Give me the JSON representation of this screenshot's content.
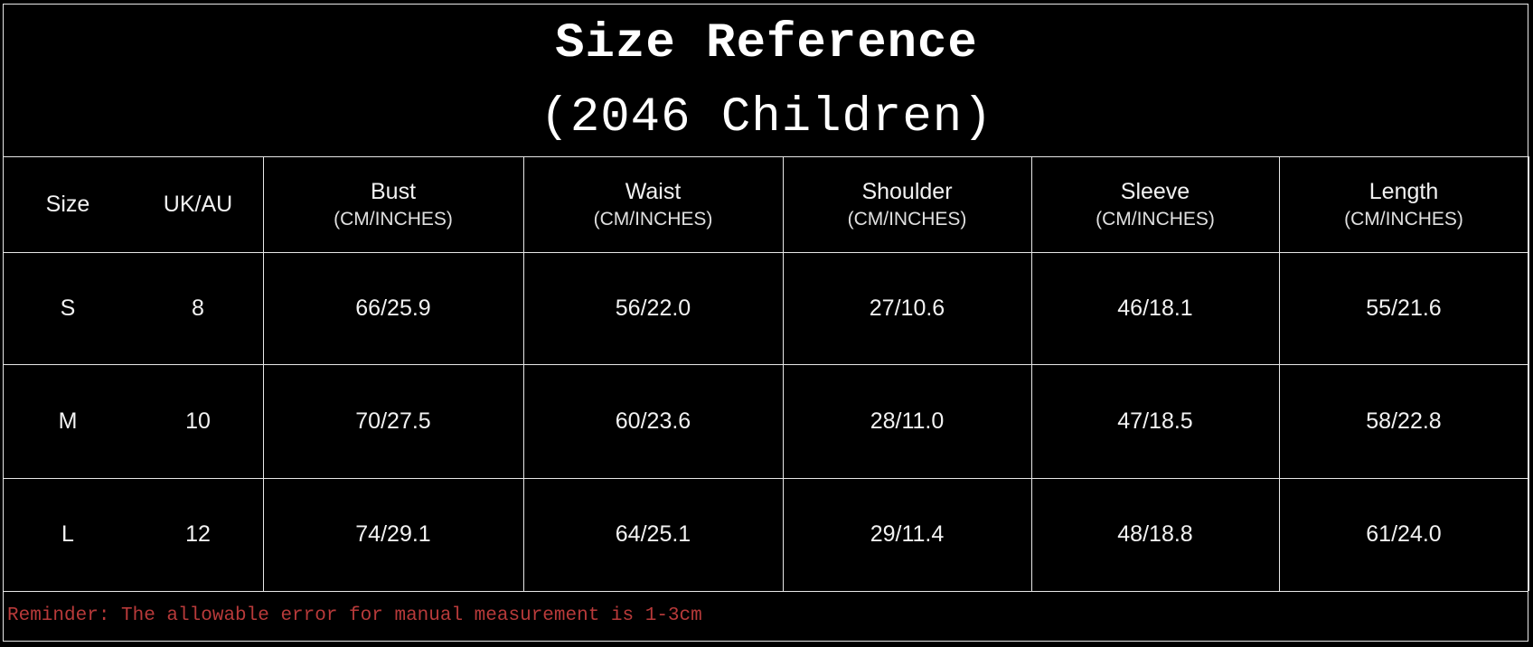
{
  "title": "Size Reference",
  "subtitle": "(2046 Children)",
  "columns": [
    {
      "label": "Size",
      "unit": ""
    },
    {
      "label": "UK/AU",
      "unit": ""
    },
    {
      "label": "Bust",
      "unit": "(CM/INCHES)"
    },
    {
      "label": "Waist",
      "unit": "(CM/INCHES)"
    },
    {
      "label": "Shoulder",
      "unit": "(CM/INCHES)"
    },
    {
      "label": "Sleeve",
      "unit": "(CM/INCHES)"
    },
    {
      "label": "Length",
      "unit": "(CM/INCHES)"
    }
  ],
  "rows": [
    [
      "S",
      "8",
      "66/25.9",
      "56/22.0",
      "27/10.6",
      "46/18.1",
      "55/21.6"
    ],
    [
      "M",
      "10",
      "70/27.5",
      "60/23.6",
      "28/11.0",
      "47/18.5",
      "58/22.8"
    ],
    [
      "L",
      "12",
      "74/29.1",
      "64/25.1",
      "29/11.4",
      "48/18.8",
      "61/24.0"
    ]
  ],
  "reminder": "Reminder: The allowable error for manual measurement is 1-3cm",
  "colors": {
    "background": "#000000",
    "text": "#ffffff",
    "reminder": "#b83a3a",
    "grid": "#e8e8e8"
  }
}
